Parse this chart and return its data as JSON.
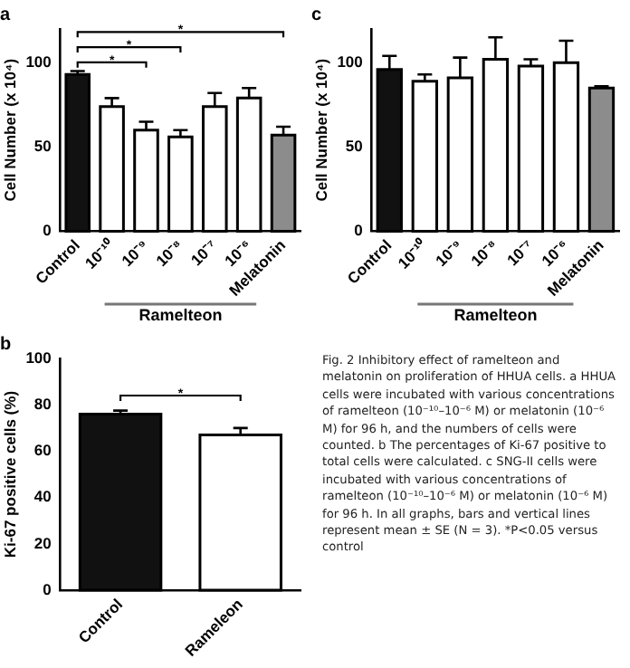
{
  "chart_data": [
    {
      "type": "bar",
      "title": "a",
      "ylabel": "Cell Number (x 10⁴)",
      "categories": [
        "Control",
        "10⁻¹⁰",
        "10⁻⁹",
        "10⁻⁸",
        "10⁻⁷",
        "10⁻⁶",
        "Melatonin"
      ],
      "values": [
        93,
        74,
        60,
        56,
        74,
        79,
        57
      ],
      "colors": [
        "#111111",
        "#ffffff",
        "#ffffff",
        "#ffffff",
        "#ffffff",
        "#ffffff",
        "#8c8c8c"
      ],
      "errors": [
        [
          93,
          95
        ],
        [
          74,
          79
        ],
        [
          60,
          65
        ],
        [
          56,
          60
        ],
        [
          74,
          82
        ],
        [
          79,
          85
        ],
        [
          57,
          62
        ]
      ],
      "ylim": [
        0,
        120
      ],
      "yticks": [
        0,
        50,
        100
      ],
      "grid": false,
      "legend": false,
      "annotations": [
        "*",
        "*",
        "*",
        "Ramelteon"
      ]
    },
    {
      "type": "bar",
      "title": "c",
      "ylabel": "Cell Number (x 10⁴)",
      "categories": [
        "Control",
        "10⁻¹⁰",
        "10⁻⁹",
        "10⁻⁸",
        "10⁻⁷",
        "10⁻⁶",
        "Melatonin"
      ],
      "values": [
        96,
        89,
        91,
        102,
        98,
        100,
        85
      ],
      "colors": [
        "#111111",
        "#ffffff",
        "#ffffff",
        "#ffffff",
        "#ffffff",
        "#ffffff",
        "#8c8c8c"
      ],
      "errors": [
        [
          96,
          104
        ],
        [
          89,
          93
        ],
        [
          91,
          103
        ],
        [
          102,
          115
        ],
        [
          98,
          102
        ],
        [
          100,
          113
        ],
        [
          85,
          86
        ]
      ],
      "ylim": [
        0,
        120
      ],
      "yticks": [
        0,
        50,
        100
      ],
      "grid": false,
      "legend": false,
      "annotations": [
        "Ramelteon"
      ]
    },
    {
      "type": "bar",
      "title": "b",
      "ylabel": "Ki-67 positive cells (%)",
      "categories": [
        "Control",
        "Rameleon"
      ],
      "values": [
        76,
        67
      ],
      "colors": [
        "#111111",
        "#ffffff"
      ],
      "errors": [
        [
          76,
          77.5
        ],
        [
          67,
          70
        ]
      ],
      "ylim": [
        0,
        100
      ],
      "yticks": [
        0,
        20,
        40,
        60,
        80,
        100
      ],
      "grid": false,
      "legend": false,
      "annotations": [
        "*"
      ]
    },
    {
      "type": "other",
      "annotations": [
        "Fig. 2 Inhibitory effect of ramelteon and melatonin on proliferation of HHUA cells. a HHUA cells were incubated with various concentrations of ramelteon (10⁻¹⁰–10⁻⁶ M) or melatonin (10⁻⁶ M) for 96 h, and the numbers of cells were counted. b The percentages of Ki-67 positive to total cells were calculated. c SNG-II cells were incubated with various concentrations of ramelteon (10⁻¹⁰–10⁻⁶ M) or melatonin (10⁻⁶ M) for 96 h. In all graphs, bars and vertical lines represent mean ± SE (N = 3). *P<0.05 versus control"
      ]
    }
  ]
}
